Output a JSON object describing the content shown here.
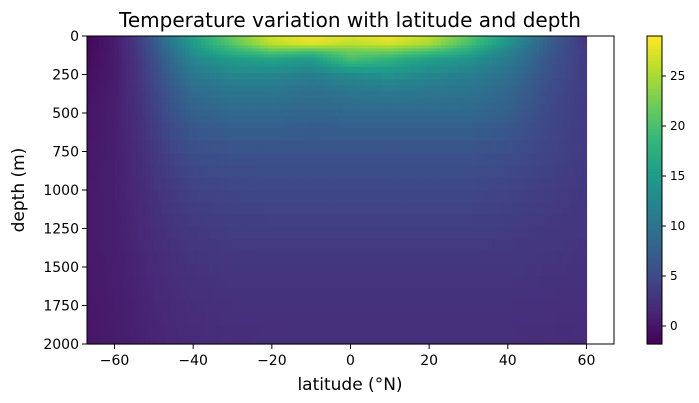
{
  "chart_data": {
    "type": "heatmap",
    "title": "Temperature variation with latitude and depth",
    "xlabel": "latitude (°N)",
    "ylabel": "depth (m)",
    "xlim": [
      -67,
      67
    ],
    "ylim": [
      2000,
      0
    ],
    "x_ticks": [
      -60,
      -40,
      -20,
      0,
      20,
      40,
      60
    ],
    "x_tick_labels": [
      "−60",
      "−40",
      "−20",
      "0",
      "20",
      "40",
      "60"
    ],
    "y_ticks": [
      0,
      250,
      500,
      750,
      1000,
      1250,
      1500,
      1750,
      2000
    ],
    "y_tick_labels": [
      "0",
      "250",
      "500",
      "750",
      "1000",
      "1250",
      "1500",
      "1750",
      "2000"
    ],
    "colorbar": {
      "colormap": "viridis",
      "vmin": -1.8,
      "vmax": 29,
      "ticks": [
        0,
        5,
        10,
        15,
        20,
        25
      ],
      "tick_labels": [
        "0",
        "5",
        "10",
        "15",
        "20",
        "25"
      ]
    },
    "latitude": [
      -67,
      -60,
      -55,
      -50,
      -45,
      -40,
      -30,
      -20,
      -10,
      0,
      10,
      20,
      30,
      40,
      50,
      60
    ],
    "depth": [
      0,
      50,
      100,
      150,
      250,
      350,
      500,
      750,
      1000,
      1250,
      1500,
      1750,
      2000
    ],
    "temperature": [
      [
        -1.2,
        0.5,
        3,
        7,
        12,
        16,
        22,
        27,
        28.5,
        27.5,
        28.5,
        26,
        21,
        15,
        8,
        3
      ],
      [
        -1.2,
        0.5,
        3,
        6.5,
        11,
        15,
        21,
        26,
        27.5,
        26,
        27,
        25,
        20,
        14,
        7.5,
        3
      ],
      [
        -1.0,
        0.5,
        2.8,
        6,
        10,
        14,
        18,
        21,
        20,
        22,
        22,
        20,
        17,
        12,
        7,
        3.5
      ],
      [
        -0.8,
        0.5,
        2.6,
        5.5,
        9,
        12.5,
        15,
        16,
        15,
        20,
        18,
        15.5,
        14,
        11,
        6.5,
        3.5
      ],
      [
        -0.5,
        0.5,
        2.4,
        5,
        8,
        10.5,
        12.5,
        12.5,
        11.5,
        13,
        14,
        12.5,
        11.5,
        9.5,
        6,
        3.5
      ],
      [
        -0.3,
        0.7,
        2.2,
        4.5,
        7,
        9,
        10.5,
        10.5,
        9.5,
        10.5,
        11,
        10.5,
        10,
        8.5,
        5.5,
        3.5
      ],
      [
        0,
        0.8,
        2,
        4,
        6,
        7.5,
        8.5,
        8.5,
        8,
        8.5,
        8.5,
        8.5,
        8.5,
        7.5,
        5,
        3.5
      ],
      [
        0.2,
        0.8,
        1.8,
        3.2,
        4.5,
        5.5,
        6,
        6,
        6,
        6,
        6,
        6,
        6,
        5.5,
        4.5,
        3.5
      ],
      [
        0.4,
        0.8,
        1.6,
        2.6,
        3.5,
        4.2,
        4.6,
        4.8,
        4.8,
        4.8,
        4.8,
        4.8,
        4.8,
        4.4,
        3.8,
        3.2
      ],
      [
        0.4,
        0.8,
        1.4,
        2.2,
        2.8,
        3.3,
        3.7,
        3.8,
        3.8,
        3.8,
        3.8,
        3.8,
        3.8,
        3.6,
        3.3,
        3
      ],
      [
        0.3,
        0.7,
        1.2,
        1.8,
        2.3,
        2.7,
        3,
        3,
        3,
        3,
        3,
        3,
        3,
        3,
        2.8,
        2.6
      ],
      [
        0.2,
        0.6,
        1,
        1.5,
        1.9,
        2.2,
        2.5,
        2.5,
        2.5,
        2.5,
        2.5,
        2.5,
        2.5,
        2.5,
        2.4,
        2.3
      ],
      [
        0.1,
        0.5,
        0.9,
        1.3,
        1.6,
        1.9,
        2.1,
        2.2,
        2.2,
        2.2,
        2.2,
        2.2,
        2.2,
        2.2,
        2.1,
        2
      ]
    ]
  }
}
